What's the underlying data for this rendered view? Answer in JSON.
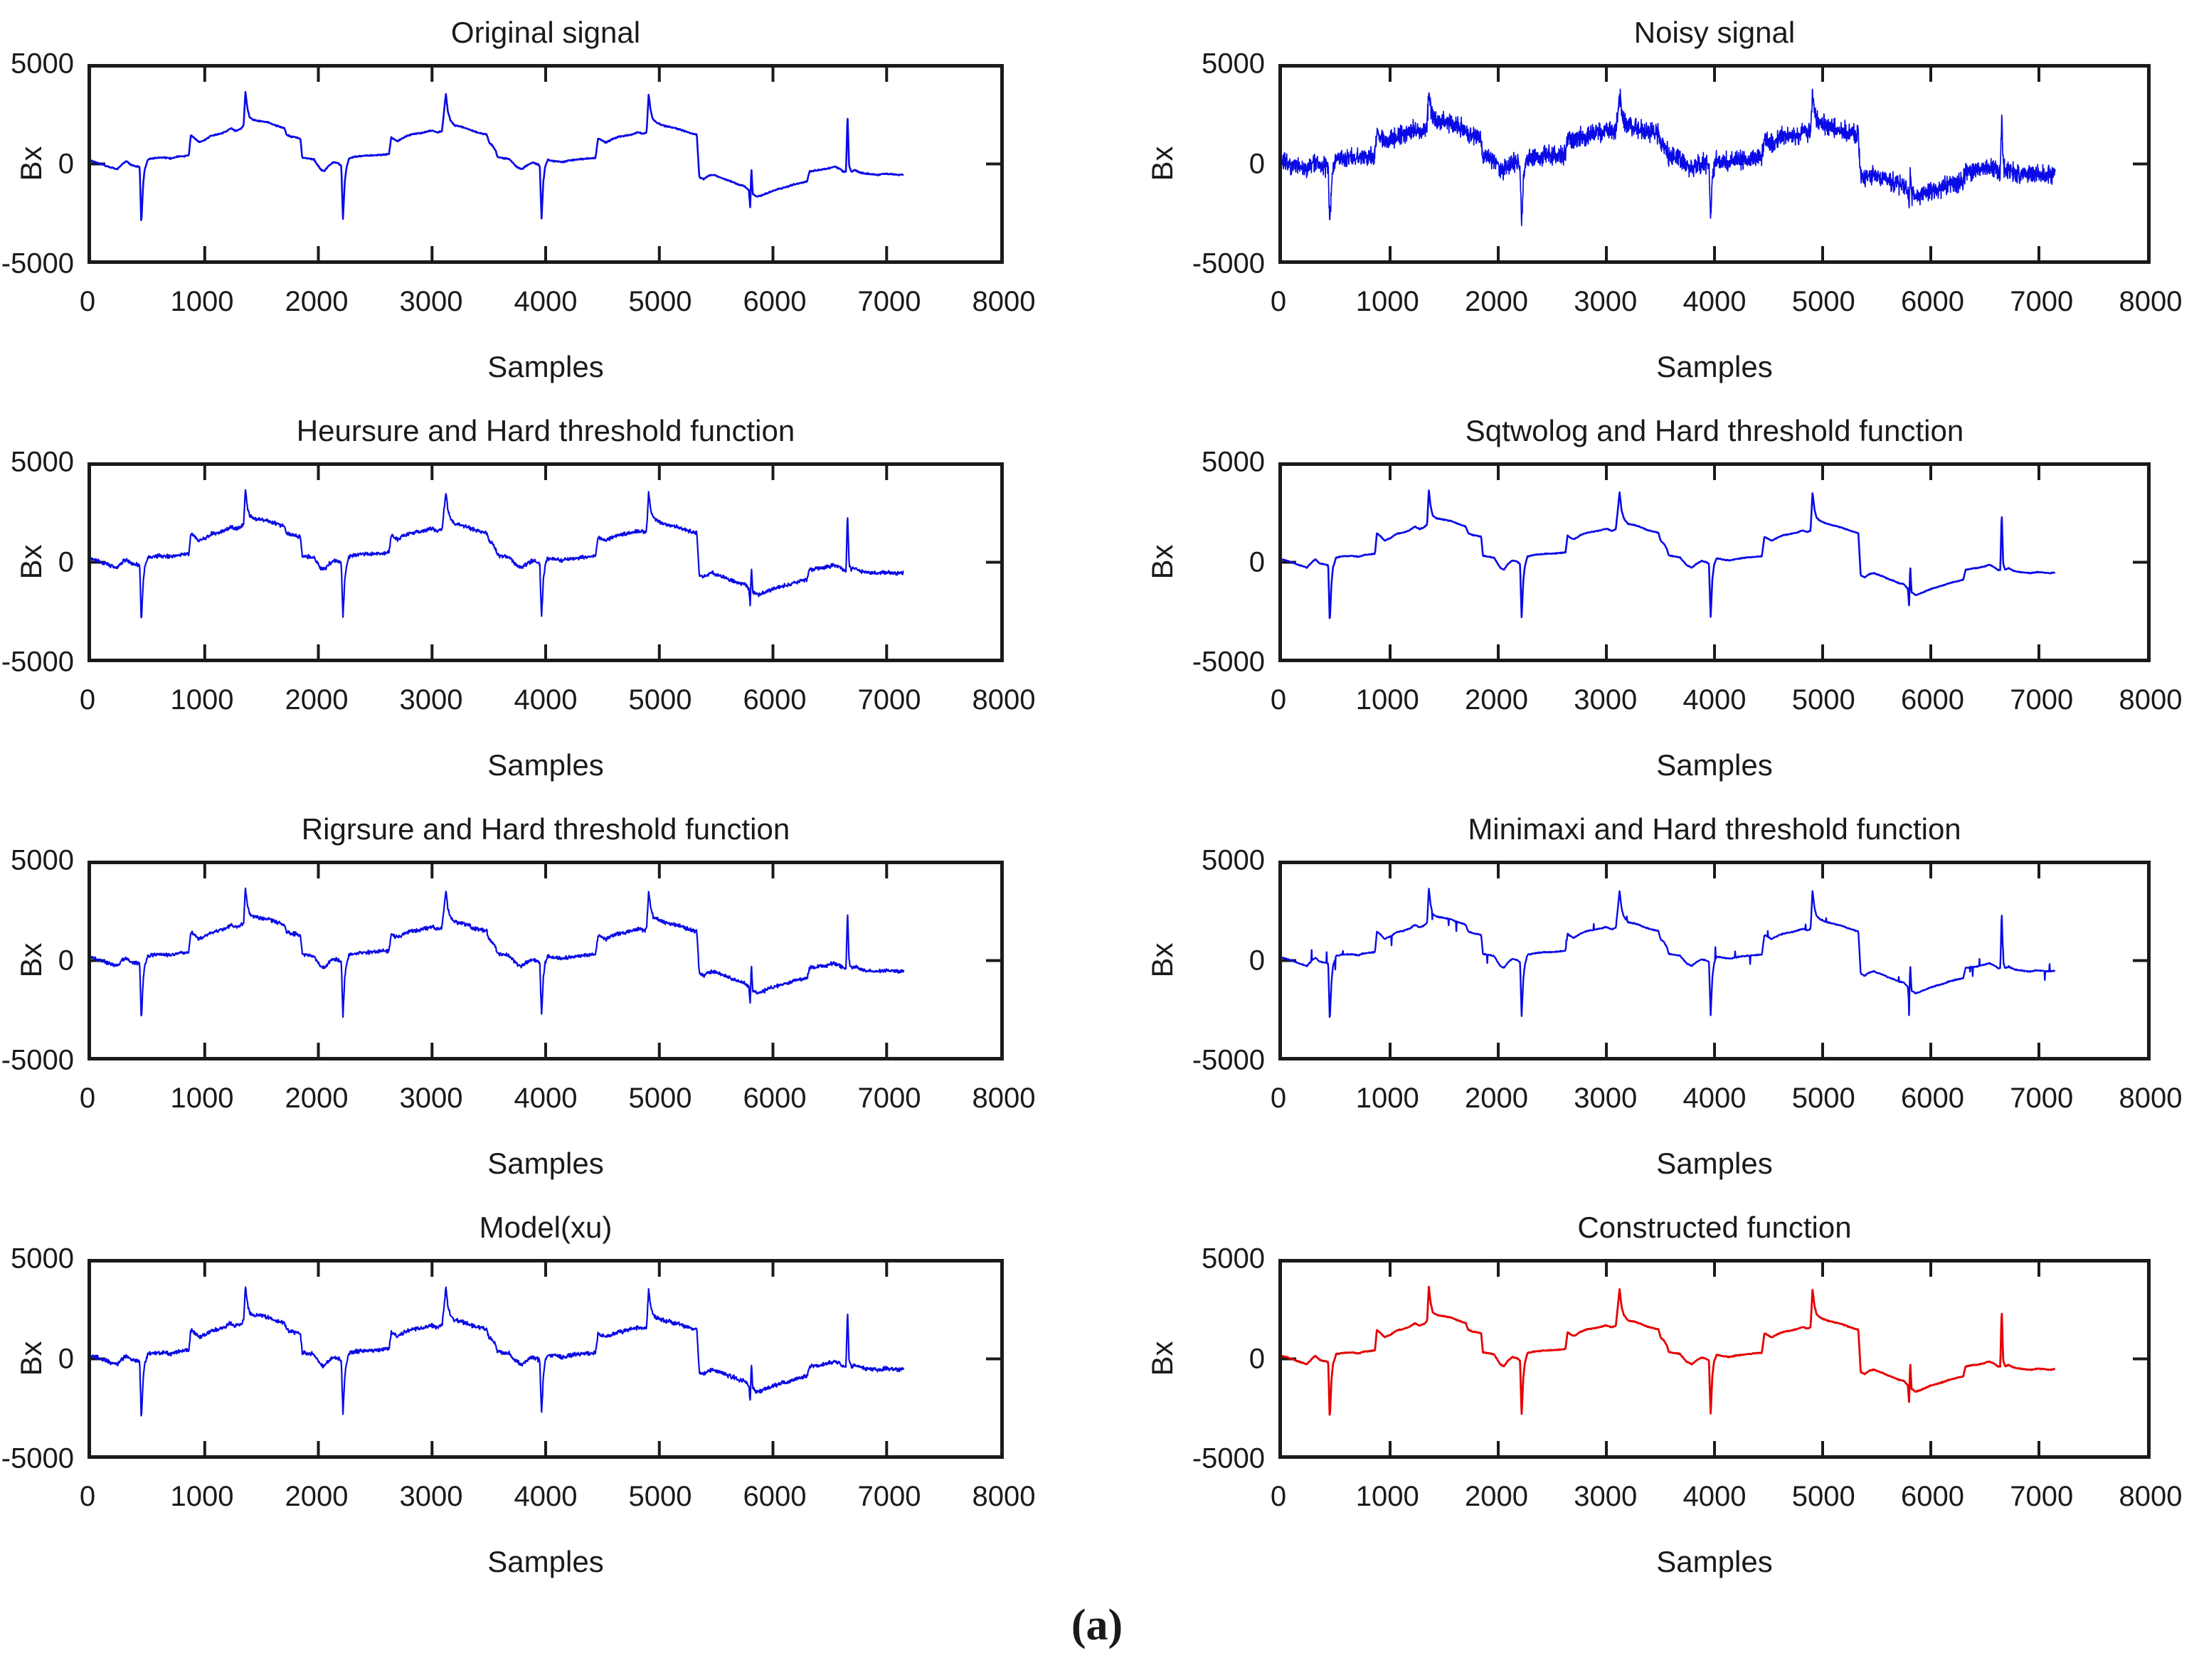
{
  "figure": {
    "caption": "(a)",
    "background": "#ffffff",
    "axis_color": "#1a1a1a"
  },
  "chart_data": {
    "type": "line",
    "xlabel": "Samples",
    "ylabel": "Bx",
    "xlim": [
      0,
      8000
    ],
    "ylim": [
      -5000,
      5000
    ],
    "xticks": [
      0,
      1000,
      2000,
      3000,
      4000,
      5000,
      6000,
      7000,
      8000
    ],
    "yticks": [
      5000,
      0,
      -5000
    ],
    "grid": false,
    "legend": "none",
    "signal_end_sample": 7150,
    "base_waveform_keypoints": [
      [
        0,
        150
      ],
      [
        60,
        60
      ],
      [
        140,
        -110
      ],
      [
        230,
        -280
      ],
      [
        285,
        50
      ],
      [
        310,
        150
      ],
      [
        350,
        -60
      ],
      [
        400,
        -120
      ],
      [
        428,
        -160
      ],
      [
        442,
        -3150
      ],
      [
        458,
        -1100
      ],
      [
        472,
        -280
      ],
      [
        500,
        240
      ],
      [
        560,
        310
      ],
      [
        650,
        330
      ],
      [
        705,
        280
      ],
      [
        760,
        380
      ],
      [
        820,
        410
      ],
      [
        860,
        440
      ],
      [
        878,
        1500
      ],
      [
        905,
        1380
      ],
      [
        950,
        1120
      ],
      [
        1005,
        1260
      ],
      [
        1060,
        1480
      ],
      [
        1120,
        1540
      ],
      [
        1180,
        1660
      ],
      [
        1230,
        1850
      ],
      [
        1272,
        1720
      ],
      [
        1310,
        1800
      ],
      [
        1342,
        1960
      ],
      [
        1358,
        3750
      ],
      [
        1376,
        2860
      ],
      [
        1396,
        2400
      ],
      [
        1430,
        2280
      ],
      [
        1500,
        2210
      ],
      [
        1560,
        2150
      ],
      [
        1620,
        2010
      ],
      [
        1675,
        1900
      ],
      [
        1700,
        1860
      ],
      [
        1722,
        1510
      ],
      [
        1760,
        1420
      ],
      [
        1800,
        1380
      ],
      [
        1842,
        1330
      ],
      [
        1858,
        340
      ],
      [
        1900,
        300
      ],
      [
        1960,
        240
      ],
      [
        2020,
        -290
      ],
      [
        2052,
        -380
      ],
      [
        2090,
        -100
      ],
      [
        2130,
        90
      ],
      [
        2172,
        40
      ],
      [
        2202,
        -90
      ],
      [
        2216,
        -2920
      ],
      [
        2232,
        -950
      ],
      [
        2246,
        -240
      ],
      [
        2270,
        300
      ],
      [
        2330,
        380
      ],
      [
        2420,
        430
      ],
      [
        2500,
        450
      ],
      [
        2570,
        480
      ],
      [
        2622,
        510
      ],
      [
        2641,
        1390
      ],
      [
        2672,
        1260
      ],
      [
        2702,
        1190
      ],
      [
        2760,
        1400
      ],
      [
        2820,
        1530
      ],
      [
        2880,
        1590
      ],
      [
        2940,
        1650
      ],
      [
        3000,
        1740
      ],
      [
        3048,
        1630
      ],
      [
        3088,
        1710
      ],
      [
        3122,
        3640
      ],
      [
        3140,
        2710
      ],
      [
        3162,
        2270
      ],
      [
        3200,
        1990
      ],
      [
        3260,
        1930
      ],
      [
        3320,
        1810
      ],
      [
        3380,
        1670
      ],
      [
        3440,
        1580
      ],
      [
        3482,
        1530
      ],
      [
        3502,
        1110
      ],
      [
        3532,
        960
      ],
      [
        3560,
        690
      ],
      [
        3576,
        360
      ],
      [
        3620,
        310
      ],
      [
        3680,
        260
      ],
      [
        3740,
        -140
      ],
      [
        3788,
        -280
      ],
      [
        3840,
        -60
      ],
      [
        3880,
        70
      ],
      [
        3920,
        10
      ],
      [
        3948,
        -70
      ],
      [
        3964,
        -2870
      ],
      [
        3980,
        -880
      ],
      [
        3996,
        -140
      ],
      [
        4020,
        210
      ],
      [
        4080,
        140
      ],
      [
        4140,
        100
      ],
      [
        4200,
        170
      ],
      [
        4280,
        230
      ],
      [
        4360,
        280
      ],
      [
        4438,
        310
      ],
      [
        4462,
        1330
      ],
      [
        4498,
        1210
      ],
      [
        4530,
        1110
      ],
      [
        4580,
        1270
      ],
      [
        4640,
        1410
      ],
      [
        4700,
        1460
      ],
      [
        4760,
        1540
      ],
      [
        4818,
        1650
      ],
      [
        4858,
        1570
      ],
      [
        4888,
        1630
      ],
      [
        4906,
        3620
      ],
      [
        4924,
        2760
      ],
      [
        4944,
        2310
      ],
      [
        4980,
        2130
      ],
      [
        5040,
        1990
      ],
      [
        5100,
        1910
      ],
      [
        5160,
        1830
      ],
      [
        5220,
        1710
      ],
      [
        5280,
        1590
      ],
      [
        5330,
        1510
      ],
      [
        5352,
        -690
      ],
      [
        5390,
        -780
      ],
      [
        5430,
        -620
      ],
      [
        5470,
        -560
      ],
      [
        5510,
        -640
      ],
      [
        5550,
        -720
      ],
      [
        5600,
        -850
      ],
      [
        5650,
        -950
      ],
      [
        5700,
        -1080
      ],
      [
        5748,
        -1130
      ],
      [
        5788,
        -1360
      ],
      [
        5800,
        -2280
      ],
      [
        5810,
        -160
      ],
      [
        5822,
        -1560
      ],
      [
        5860,
        -1700
      ],
      [
        5900,
        -1630
      ],
      [
        5950,
        -1510
      ],
      [
        6000,
        -1390
      ],
      [
        6060,
        -1290
      ],
      [
        6120,
        -1190
      ],
      [
        6180,
        -1070
      ],
      [
        6240,
        -990
      ],
      [
        6300,
        -910
      ],
      [
        6322,
        -390
      ],
      [
        6380,
        -330
      ],
      [
        6440,
        -290
      ],
      [
        6500,
        -210
      ],
      [
        6540,
        -130
      ],
      [
        6580,
        -230
      ],
      [
        6620,
        -390
      ],
      [
        6643,
        -410
      ],
      [
        6656,
        2620
      ],
      [
        6670,
        -90
      ],
      [
        6688,
        -390
      ],
      [
        6720,
        -310
      ],
      [
        6760,
        -430
      ],
      [
        6800,
        -490
      ],
      [
        6860,
        -530
      ],
      [
        6920,
        -570
      ],
      [
        6980,
        -510
      ],
      [
        7040,
        -530
      ],
      [
        7100,
        -570
      ],
      [
        7150,
        -530
      ]
    ],
    "subplots": [
      {
        "id": "original-signal",
        "title": "Original signal",
        "color": "#0a0ae6",
        "noise_amp": 40,
        "points": 1800,
        "seed": 1,
        "stroke_width": 2.6
      },
      {
        "id": "noisy-signal",
        "title": "Noisy signal",
        "color": "#0a0ae6",
        "noise_amp": 600,
        "points": 3200,
        "seed": 2,
        "stroke_width": 1.7
      },
      {
        "id": "heursure-hard",
        "title": "Heursure and Hard threshold function",
        "color": "#0a0ae6",
        "noise_amp": 120,
        "points": 1800,
        "seed": 3,
        "stroke_width": 2.2
      },
      {
        "id": "sqtwolog-hard",
        "title": "Sqtwolog and Hard threshold function",
        "color": "#0a0ae6",
        "noise_amp": 25,
        "points": 1800,
        "seed": 4,
        "stroke_width": 2.6
      },
      {
        "id": "rigrsure-hard",
        "title": "Rigrsure and Hard threshold function",
        "color": "#0a0ae6",
        "noise_amp": 120,
        "points": 1800,
        "seed": 5,
        "stroke_width": 2.2
      },
      {
        "id": "minimaxi-hard",
        "title": "Minimaxi and Hard threshold function",
        "color": "#0a0ae6",
        "noise_amp": 35,
        "points": 1800,
        "seed": 6,
        "stroke_width": 2.4,
        "spikes": {
          "prob": 0.013,
          "min": 150,
          "max": 650
        }
      },
      {
        "id": "model-xu",
        "title": "Model(xu)",
        "color": "#0a0ae6",
        "noise_amp": 130,
        "points": 1800,
        "seed": 7,
        "stroke_width": 2.2
      },
      {
        "id": "constructed-function",
        "title": "Constructed function",
        "color": "#e60000",
        "noise_amp": 25,
        "points": 1800,
        "seed": 8,
        "stroke_width": 2.8
      }
    ]
  }
}
